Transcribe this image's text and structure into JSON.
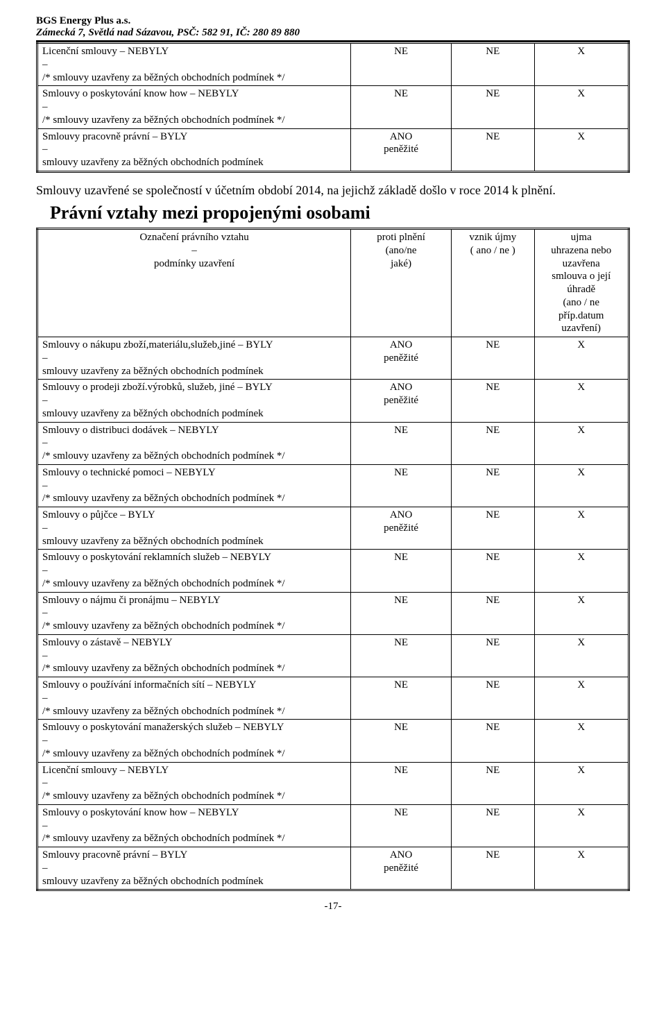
{
  "header": {
    "company": "BGS Energy Plus a.s.",
    "address": "Zámecká 7, Světlá nad Sázavou, PSČ: 582 91, IČ: 280 89 880"
  },
  "table1": {
    "rows": [
      {
        "title": "Licenční smlouvy – NEBYLY",
        "dash": "–",
        "cond": "/* smlouvy uzavřeny za běžných obchodních podmínek */",
        "c2a": "NE",
        "c2b": "",
        "c3": "NE",
        "c4": "X"
      },
      {
        "title": "Smlouvy o poskytování know how – NEBYLY",
        "dash": "–",
        "cond": "/* smlouvy uzavřeny za běžných obchodních podmínek */",
        "c2a": "NE",
        "c2b": "",
        "c3": "NE",
        "c4": "X"
      },
      {
        "title": "Smlouvy pracovně právní – BYLY",
        "dash": "–",
        "cond": "smlouvy uzavřeny za běžných obchodních podmínek",
        "c2a": "ANO",
        "c2b": "peněžité",
        "c3": "NE",
        "c4": "X"
      }
    ]
  },
  "intro": "Smlouvy uzavřené se společností v účetním období 2014, na jejichž základě došlo v roce 2014 k plnění.",
  "section_title": "Právní vztahy mezi propojenými osobami",
  "table2": {
    "head": {
      "c1a": "Označení právního vztahu",
      "c1b": "–",
      "c1c": "podmínky uzavření",
      "c2a": "proti plnění",
      "c2b": "(ano/ne",
      "c2c": "jaké)",
      "c3a": "vznik újmy",
      "c3b": "( ano / ne )",
      "c4a": "ujma",
      "c4b": "uhrazena nebo",
      "c4c": "uzavřena",
      "c4d": "smlouva o její",
      "c4e": "úhradě",
      "c4f": "(ano / ne",
      "c4g": "příp.datum",
      "c4h": "uzavření)"
    },
    "rows": [
      {
        "title": "Smlouvy o nákupu zboží,materiálu,služeb,jiné – BYLY",
        "dash": "–",
        "cond": "smlouvy uzavřeny za běžných obchodních podmínek",
        "c2a": "ANO",
        "c2b": "peněžité",
        "c3": "NE",
        "c4": "X"
      },
      {
        "title": "Smlouvy o prodeji zboží.výrobků, služeb, jiné – BYLY",
        "dash": "–",
        "cond": "smlouvy uzavřeny za běžných obchodních podmínek",
        "c2a": "ANO",
        "c2b": "peněžité",
        "c3": "NE",
        "c4": "X"
      },
      {
        "title": "Smlouvy o distribuci dodávek – NEBYLY",
        "dash": "–",
        "cond": "/* smlouvy uzavřeny za běžných obchodních podmínek */",
        "c2a": "NE",
        "c2b": "",
        "c3": "NE",
        "c4": "X"
      },
      {
        "title": "Smlouvy o technické pomoci – NEBYLY",
        "dash": "–",
        "cond": "/* smlouvy uzavřeny za běžných obchodních podmínek */",
        "c2a": "NE",
        "c2b": "",
        "c3": "NE",
        "c4": "X"
      },
      {
        "title": "Smlouvy o půjčce – BYLY",
        "dash": "–",
        "cond": "smlouvy uzavřeny za běžných obchodních podmínek",
        "c2a": "ANO",
        "c2b": "peněžité",
        "c3": "NE",
        "c4": "X"
      },
      {
        "title": "Smlouvy o poskytování reklamních služeb – NEBYLY",
        "dash": "–",
        "cond": "/* smlouvy uzavřeny za běžných obchodních podmínek */",
        "c2a": "NE",
        "c2b": "",
        "c3": "NE",
        "c4": "X"
      },
      {
        "title": "Smlouvy o nájmu či pronájmu – NEBYLY",
        "dash": "–",
        "cond": "/* smlouvy uzavřeny za běžných obchodních podmínek */",
        "c2a": "NE",
        "c2b": "",
        "c3": "NE",
        "c4": "X"
      },
      {
        "title": "Smlouvy o zástavě – NEBYLY",
        "dash": "–",
        "cond": "/* smlouvy uzavřeny za běžných obchodních podmínek */",
        "c2a": "NE",
        "c2b": "",
        "c3": "NE",
        "c4": "X"
      },
      {
        "title": "Smlouvy o používání informačních sítí – NEBYLY",
        "dash": "–",
        "cond": "/* smlouvy uzavřeny za běžných obchodních podmínek */",
        "c2a": "NE",
        "c2b": "",
        "c3": "NE",
        "c4": "X"
      },
      {
        "title": "Smlouvy o poskytování manažerských služeb – NEBYLY",
        "dash": "–",
        "cond": "/* smlouvy uzavřeny za běžných obchodních podmínek */",
        "c2a": "NE",
        "c2b": "",
        "c3": "NE",
        "c4": "X"
      },
      {
        "title": "Licenční smlouvy – NEBYLY",
        "dash": "–",
        "cond": "/* smlouvy uzavřeny za běžných obchodních podmínek */",
        "c2a": "NE",
        "c2b": "",
        "c3": "NE",
        "c4": "X"
      },
      {
        "title": "Smlouvy o poskytování know how – NEBYLY",
        "dash": "–",
        "cond": "/* smlouvy uzavřeny za běžných obchodních podmínek */",
        "c2a": "NE",
        "c2b": "",
        "c3": "NE",
        "c4": "X"
      },
      {
        "title": "Smlouvy pracovně právní – BYLY",
        "dash": "–",
        "cond": "smlouvy uzavřeny za běžných obchodních podmínek",
        "c2a": "ANO",
        "c2b": "peněžité",
        "c3": "NE",
        "c4": "X"
      }
    ]
  },
  "page_number": "-17-"
}
